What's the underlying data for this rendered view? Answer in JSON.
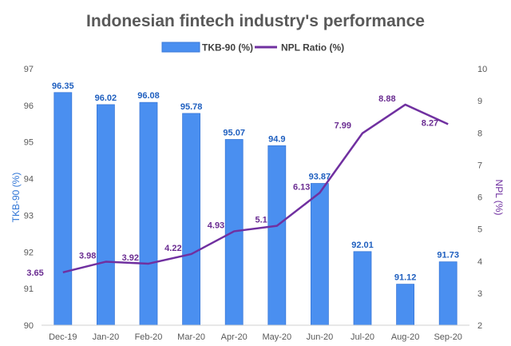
{
  "chart_data": {
    "type": "bar",
    "title": "Indonesian fintech industry's performance",
    "categories": [
      "Dec-19",
      "Jan-20",
      "Feb-20",
      "Mar-20",
      "Apr-20",
      "May-20",
      "Jun-20",
      "Jul-20",
      "Aug-20",
      "Sep-20"
    ],
    "series": [
      {
        "name": "TKB-90 (%)",
        "type": "bar",
        "axis": "left",
        "color": "#4a8ff0",
        "values": [
          96.35,
          96.02,
          96.08,
          95.78,
          95.07,
          94.9,
          93.87,
          92.01,
          91.12,
          91.73
        ],
        "labels": [
          "96.35",
          "96.02",
          "96.08",
          "95.78",
          "95.07",
          "94.9",
          "93.87",
          "92.01",
          "91.12",
          "91.73"
        ]
      },
      {
        "name": "NPL Ratio (%)",
        "type": "line",
        "axis": "right",
        "color": "#7030a0",
        "values": [
          3.65,
          3.98,
          3.92,
          4.22,
          4.93,
          5.1,
          6.13,
          7.99,
          8.88,
          8.27
        ],
        "labels": [
          "3.65",
          "3.98",
          "3.92",
          "4.22",
          "4.93",
          "5.1",
          "6.13",
          "7.99",
          "8.88",
          "8.27"
        ]
      }
    ],
    "ylabel_left": "TKB-90 (%)",
    "ylabel_right": "NPL (%)",
    "ylim_left": [
      90,
      97
    ],
    "ylim_right": [
      2,
      10
    ],
    "yticks_left": [
      "90",
      "91",
      "92",
      "93",
      "94",
      "95",
      "96",
      "97"
    ],
    "yticks_right": [
      "2",
      "3",
      "4",
      "5",
      "6",
      "7",
      "8",
      "9",
      "10"
    ],
    "legend_position": "top",
    "grid": false
  }
}
